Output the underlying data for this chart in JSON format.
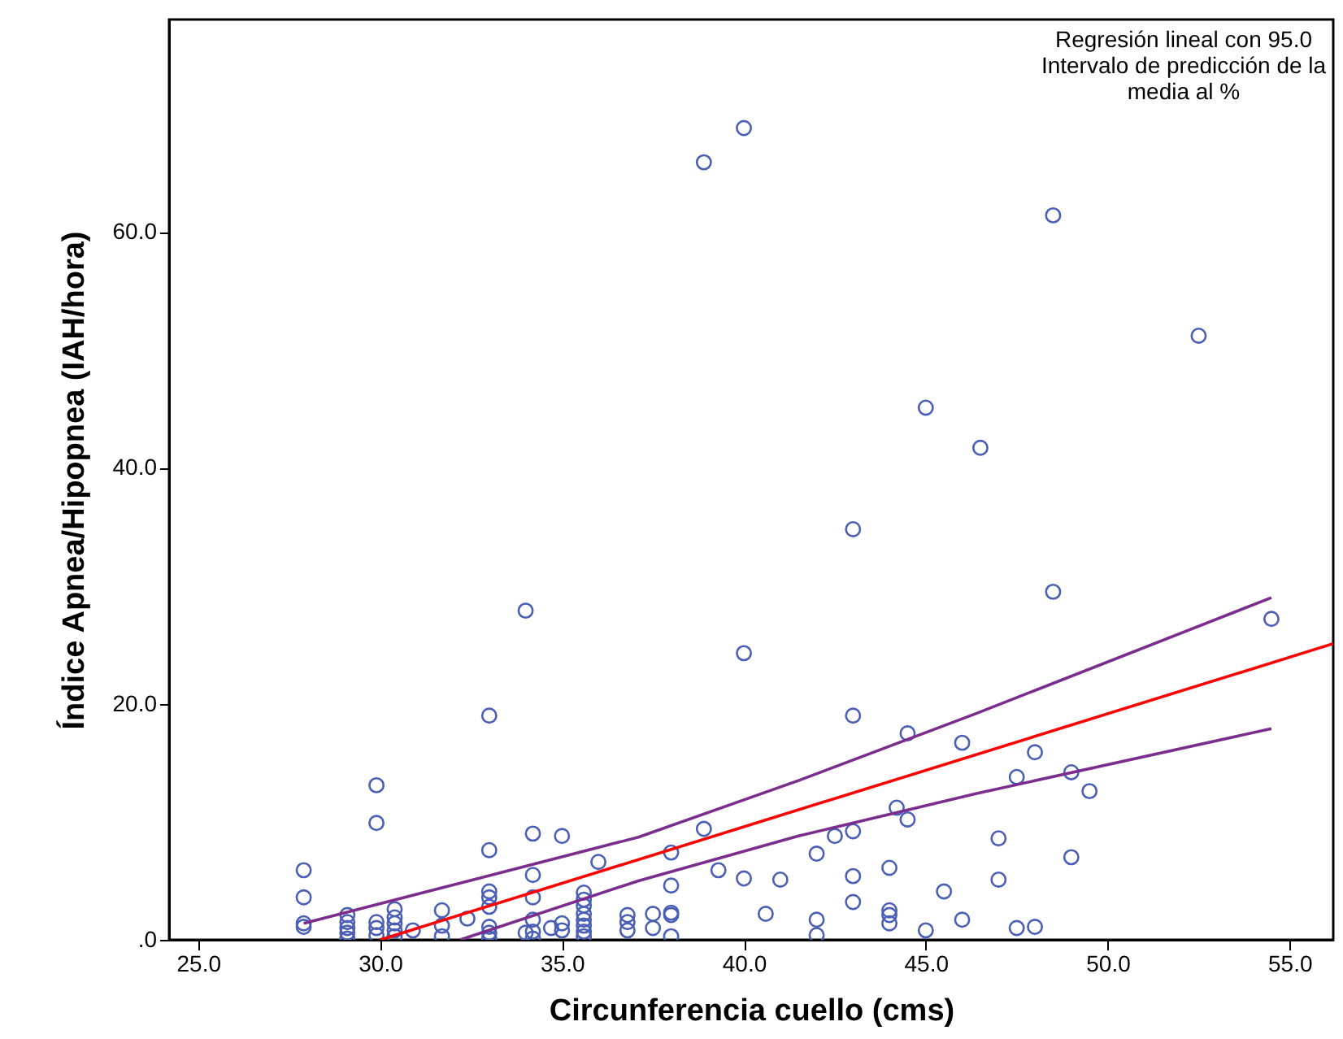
{
  "chart_data": {
    "type": "scatter",
    "xlabel": "Circunferencia cuello (cms)",
    "ylabel": "Índice Apnea/Hipopnea (IAH/hora)",
    "annotations": [
      "Regresión lineal con 95.0",
      "Intervalo de predicción de la",
      "media al %"
    ],
    "xlim": [
      24.2,
      56.2
    ],
    "ylim": [
      0,
      78
    ],
    "xticks": [
      {
        "value": 25,
        "label": "25.0"
      },
      {
        "value": 30,
        "label": "30.0"
      },
      {
        "value": 35,
        "label": "35.0"
      },
      {
        "value": 40,
        "label": "40.0"
      },
      {
        "value": 45,
        "label": "45.0"
      },
      {
        "value": 50,
        "label": "50.0"
      },
      {
        "value": 55,
        "label": "55.0"
      }
    ],
    "yticks": [
      {
        "value": 0,
        "label": ".0"
      },
      {
        "value": 20,
        "label": "20.0"
      },
      {
        "value": 40,
        "label": "40.0"
      },
      {
        "value": 60,
        "label": "60.0"
      }
    ],
    "grid": false,
    "series": [
      {
        "marker": "circle",
        "color": "#4a5fb5",
        "x": [
          27.9,
          27.9,
          27.9,
          27.9,
          29.1,
          29.1,
          29.1,
          29.1,
          29.1,
          29.9,
          29.9,
          29.9,
          29.9,
          29.9,
          30.4,
          30.4,
          30.4,
          30.4,
          30.4,
          30.9,
          31.7,
          31.7,
          31.7,
          32.4,
          33.0,
          33.0,
          33.0,
          33.0,
          33.0,
          33.0,
          33.0,
          33.0,
          34.0,
          34.0,
          34.2,
          34.2,
          34.2,
          34.2,
          34.2,
          34.2,
          34.7,
          35.0,
          35.0,
          35.0,
          35.6,
          35.6,
          35.6,
          35.6,
          35.6,
          35.6,
          35.6,
          35.6,
          36.0,
          36.8,
          36.8,
          36.8,
          37.5,
          37.5,
          38.0,
          38.0,
          38.0,
          38.0,
          38.0,
          38.9,
          38.9,
          39.3,
          40.0,
          40.0,
          40.0,
          40.6,
          41.0,
          42.0,
          42.0,
          42.0,
          42.5,
          43.0,
          43.0,
          43.0,
          43.0,
          43.0,
          44.0,
          44.0,
          44.0,
          44.0,
          44.2,
          44.5,
          44.5,
          45.0,
          45.0,
          45.5,
          46.0,
          46.0,
          46.5,
          47.0,
          47.0,
          47.5,
          47.5,
          48.0,
          48.0,
          48.5,
          48.5,
          49.0,
          49.0,
          49.5,
          52.5,
          54.5
        ],
        "values": [
          5.9,
          3.6,
          1.4,
          1.1,
          2.1,
          1.5,
          1.0,
          0.6,
          0.1,
          13.1,
          9.9,
          1.5,
          1.0,
          0.4,
          2.6,
          1.9,
          1.4,
          0.8,
          0.3,
          0.8,
          2.5,
          1.2,
          0.3,
          1.8,
          19.0,
          7.6,
          4.1,
          3.6,
          2.8,
          1.1,
          0.6,
          0.1,
          27.9,
          0.6,
          9.0,
          5.5,
          3.6,
          1.7,
          0.7,
          0.1,
          1.0,
          8.8,
          1.4,
          0.8,
          4.0,
          3.4,
          2.9,
          2.2,
          1.7,
          1.2,
          0.7,
          0.3,
          6.6,
          2.1,
          1.5,
          0.8,
          2.2,
          1.0,
          7.4,
          4.6,
          2.3,
          2.1,
          0.3,
          65.9,
          9.4,
          5.9,
          68.8,
          24.3,
          5.2,
          2.2,
          5.1,
          7.3,
          1.7,
          0.4,
          8.8,
          34.8,
          19.0,
          9.2,
          5.4,
          3.2,
          6.1,
          2.5,
          2.1,
          1.4,
          11.2,
          17.5,
          10.2,
          45.1,
          0.8,
          4.1,
          16.7,
          1.7,
          41.7,
          8.6,
          5.1,
          13.8,
          1.0,
          15.9,
          1.1,
          61.4,
          29.5,
          14.2,
          7.0,
          12.6,
          51.2,
          27.2
        ]
      },
      {
        "type": "line",
        "color": "#ff0000",
        "x": [
          30.0,
          56.2
        ],
        "values": [
          0,
          25.1
        ]
      },
      {
        "type": "line",
        "color": "#7b2d8e",
        "x": [
          27.9,
          32.7,
          37.1,
          41.5,
          46.4,
          54.5
        ],
        "values": [
          1.4,
          5.2,
          8.7,
          13.5,
          19.2,
          29.0
        ]
      },
      {
        "type": "line",
        "color": "#7b2d8e",
        "x": [
          32.2,
          37.1,
          41.5,
          46.4,
          54.5
        ],
        "values": [
          0,
          5.0,
          8.8,
          12.4,
          17.9
        ]
      }
    ]
  }
}
